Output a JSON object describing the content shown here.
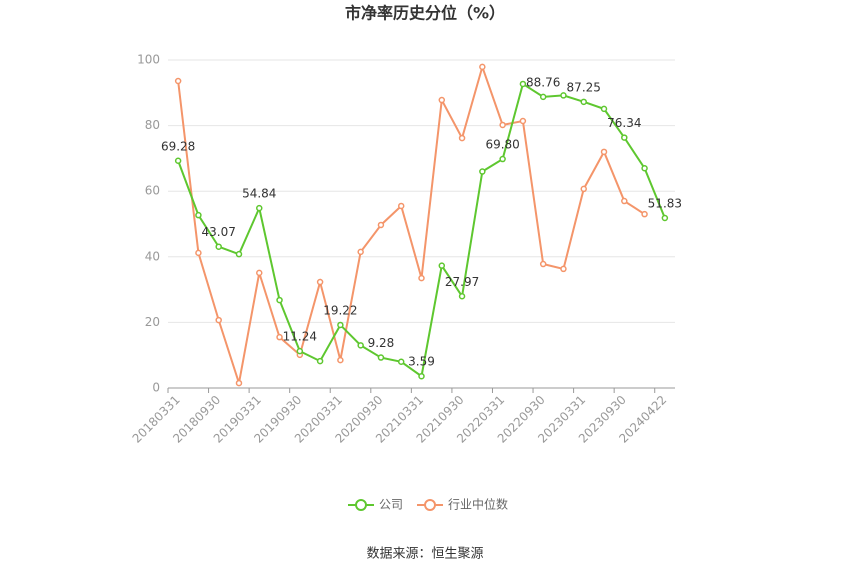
{
  "chart_data": {
    "type": "line",
    "title": "市净率历史分位（%）",
    "categories": [
      "20180331",
      null,
      "20180930",
      null,
      "20190331",
      null,
      "20190930",
      null,
      "20200331",
      null,
      "20200930",
      null,
      "20210331",
      null,
      "20210930",
      null,
      "20220331",
      null,
      "20220930",
      null,
      "20230331",
      null,
      "20230930",
      null,
      "20240422"
    ],
    "series": [
      {
        "name": "公司",
        "color": "#5ec72f",
        "values": [
          69.28,
          52.7,
          43.07,
          40.8,
          54.84,
          26.8,
          11.24,
          8.2,
          19.22,
          13,
          9.28,
          8,
          3.59,
          37.3,
          27.97,
          66,
          69.8,
          92.7,
          88.76,
          89.2,
          87.25,
          85.1,
          76.34,
          67,
          51.83
        ],
        "value_labels": [
          "69.28",
          null,
          "43.07",
          null,
          "54.84",
          null,
          "11.24",
          null,
          "19.22",
          null,
          "9.28",
          null,
          "3.59",
          null,
          "27.97",
          null,
          "69.80",
          null,
          "88.76",
          null,
          "87.25",
          null,
          "76.34",
          null,
          "51.83"
        ]
      },
      {
        "name": "行业中位数",
        "color": "#f4956a",
        "values": [
          93.6,
          41.2,
          20.7,
          1.5,
          35.1,
          15.5,
          10.1,
          32.3,
          8.5,
          41.5,
          49.7,
          55.5,
          33.5,
          87.8,
          76.2,
          97.9,
          80.2,
          81.4,
          37.8,
          36.3,
          60.7,
          72,
          57,
          53,
          null
        ]
      }
    ],
    "ylim": [
      0,
      100
    ],
    "yticks": [
      0,
      20,
      40,
      60,
      80,
      100
    ],
    "grid": true,
    "source": "数据来源：恒生聚源"
  }
}
